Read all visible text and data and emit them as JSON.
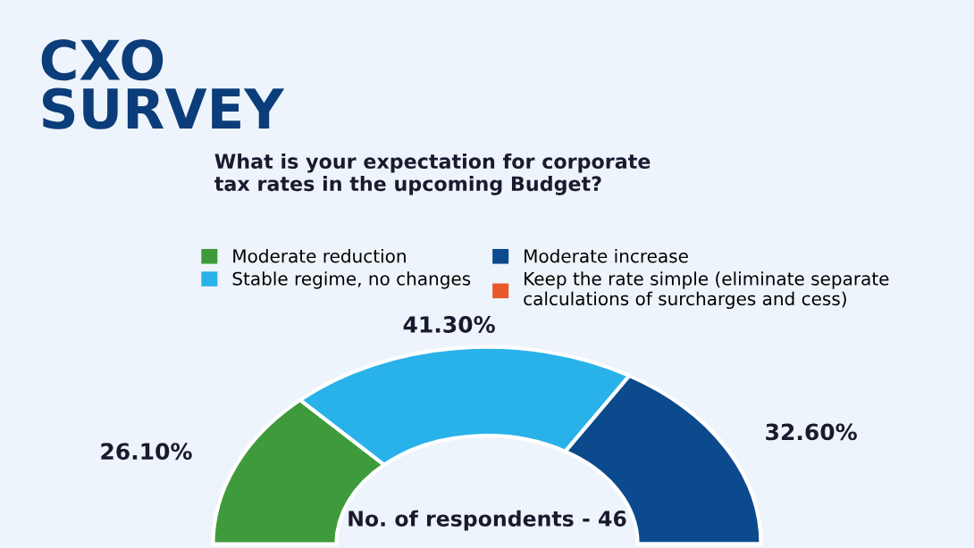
{
  "chart_data": {
    "type": "donut",
    "title": "CXO\nSURVEY",
    "subtitle": "What is your expectation for corporate\ntax rates in the upcoming Budget?",
    "categories": [
      "Moderate reduction",
      "Stable regime, no changes",
      "Moderate increase",
      "Keep the rate simple (eliminate separate\ncalculations of surcharges and cess)"
    ],
    "values": [
      26.1,
      41.3,
      32.6,
      0
    ],
    "colors": [
      "#3e9a3a",
      "#29b2ea",
      "#0b4a8c",
      "#e8582a"
    ],
    "value_labels": [
      "26.10%",
      "41.30%",
      "32.60%",
      null
    ],
    "annotations": [
      "No. of respondents - 46"
    ],
    "legend": "top"
  }
}
